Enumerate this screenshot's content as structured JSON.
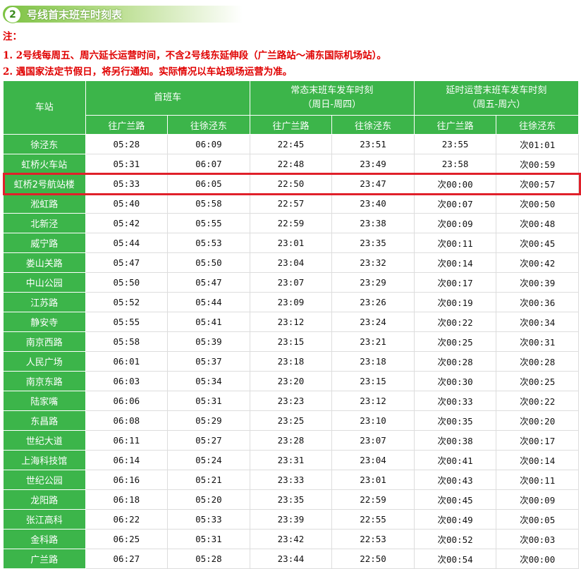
{
  "title": {
    "number": "2",
    "text": "号线首末班车时刻表"
  },
  "notes": {
    "label": "注：",
    "items": [
      "1. 2号线每周五、周六延长运营时间，不含2号线东延伸段（广兰路站～浦东国际机场站）。",
      "2. 遇国家法定节假日，将另行通知。实际情况以车站现场运营为准。"
    ]
  },
  "colors": {
    "header_green": "#3cb54a",
    "highlight_red": "#e0202a",
    "note_red": "#e00000"
  },
  "table": {
    "header": {
      "station": "车站",
      "first": "首班车",
      "normal": "常态末班车发车时刻",
      "normal_sub": "（周日-周四）",
      "extended": "延时运营末班车发车时刻",
      "extended_sub": "（周五-周六）",
      "dirs": [
        "往广兰路",
        "往徐泾东",
        "往广兰路",
        "往徐泾东",
        "往广兰路",
        "往徐泾东"
      ]
    },
    "highlighted_row": "虹桥2号航站楼",
    "rows": [
      [
        "徐泾东",
        "05:28",
        "06:09",
        "22:45",
        "23:51",
        "23:55",
        "次01:01"
      ],
      [
        "虹桥火车站",
        "05:31",
        "06:07",
        "22:48",
        "23:49",
        "23:58",
        "次00:59"
      ],
      [
        "虹桥2号航站楼",
        "05:33",
        "06:05",
        "22:50",
        "23:47",
        "次00:00",
        "次00:57"
      ],
      [
        "淞虹路",
        "05:40",
        "05:58",
        "22:57",
        "23:40",
        "次00:07",
        "次00:50"
      ],
      [
        "北新泾",
        "05:42",
        "05:55",
        "22:59",
        "23:38",
        "次00:09",
        "次00:48"
      ],
      [
        "威宁路",
        "05:44",
        "05:53",
        "23:01",
        "23:35",
        "次00:11",
        "次00:45"
      ],
      [
        "娄山关路",
        "05:47",
        "05:50",
        "23:04",
        "23:32",
        "次00:14",
        "次00:42"
      ],
      [
        "中山公园",
        "05:50",
        "05:47",
        "23:07",
        "23:29",
        "次00:17",
        "次00:39"
      ],
      [
        "江苏路",
        "05:52",
        "05:44",
        "23:09",
        "23:26",
        "次00:19",
        "次00:36"
      ],
      [
        "静安寺",
        "05:55",
        "05:41",
        "23:12",
        "23:24",
        "次00:22",
        "次00:34"
      ],
      [
        "南京西路",
        "05:58",
        "05:39",
        "23:15",
        "23:21",
        "次00:25",
        "次00:31"
      ],
      [
        "人民广场",
        "06:01",
        "05:37",
        "23:18",
        "23:18",
        "次00:28",
        "次00:28"
      ],
      [
        "南京东路",
        "06:03",
        "05:34",
        "23:20",
        "23:15",
        "次00:30",
        "次00:25"
      ],
      [
        "陆家嘴",
        "06:06",
        "05:31",
        "23:23",
        "23:12",
        "次00:33",
        "次00:22"
      ],
      [
        "东昌路",
        "06:08",
        "05:29",
        "23:25",
        "23:10",
        "次00:35",
        "次00:20"
      ],
      [
        "世纪大道",
        "06:11",
        "05:27",
        "23:28",
        "23:07",
        "次00:38",
        "次00:17"
      ],
      [
        "上海科技馆",
        "06:14",
        "05:24",
        "23:31",
        "23:04",
        "次00:41",
        "次00:14"
      ],
      [
        "世纪公园",
        "06:16",
        "05:21",
        "23:33",
        "23:01",
        "次00:43",
        "次00:11"
      ],
      [
        "龙阳路",
        "06:18",
        "05:20",
        "23:35",
        "22:59",
        "次00:45",
        "次00:09"
      ],
      [
        "张江高科",
        "06:22",
        "05:33",
        "23:39",
        "22:55",
        "次00:49",
        "次00:05"
      ],
      [
        "金科路",
        "06:25",
        "05:31",
        "23:42",
        "22:53",
        "次00:52",
        "次00:03"
      ],
      [
        "广兰路",
        "06:27",
        "05:28",
        "23:44",
        "22:50",
        "次00:54",
        "次00:00"
      ]
    ]
  }
}
